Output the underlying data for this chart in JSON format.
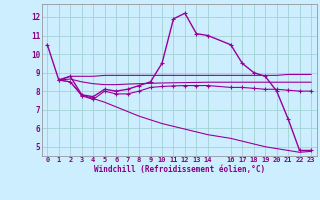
{
  "xlabel": "Windchill (Refroidissement éolien,°C)",
  "bg_color": "#cceeff",
  "grid_color": "#99cccc",
  "line_color": "#990099",
  "xlim": [
    -0.5,
    23.5
  ],
  "ylim": [
    4.5,
    12.7
  ],
  "xticks": [
    0,
    1,
    2,
    3,
    4,
    5,
    6,
    7,
    8,
    9,
    10,
    11,
    12,
    13,
    14,
    16,
    17,
    18,
    19,
    20,
    21,
    22,
    23
  ],
  "yticks": [
    5,
    6,
    7,
    8,
    9,
    10,
    11,
    12
  ],
  "series": [
    {
      "x": [
        0,
        1,
        2,
        3,
        4,
        5,
        6,
        7,
        8,
        9,
        10,
        11,
        12,
        13,
        14,
        16,
        17,
        18,
        19,
        20,
        21,
        22,
        23
      ],
      "y": [
        10.5,
        8.6,
        8.8,
        7.8,
        7.7,
        8.1,
        8.0,
        8.1,
        8.3,
        8.5,
        9.5,
        11.9,
        12.2,
        11.1,
        11.0,
        10.5,
        9.5,
        9.0,
        8.8,
        8.0,
        6.5,
        4.8,
        4.8
      ],
      "marker": true,
      "lw": 1.0
    },
    {
      "x": [
        1,
        2,
        3,
        4,
        5,
        6,
        7,
        8,
        9,
        10,
        11,
        12,
        13,
        14,
        16,
        17,
        18,
        19,
        20,
        21,
        22,
        23
      ],
      "y": [
        8.6,
        8.8,
        8.8,
        8.8,
        8.85,
        8.85,
        8.85,
        8.85,
        8.85,
        8.85,
        8.85,
        8.85,
        8.85,
        8.85,
        8.85,
        8.85,
        8.85,
        8.85,
        8.85,
        8.9,
        8.9,
        8.9
      ],
      "marker": false,
      "lw": 0.8
    },
    {
      "x": [
        1,
        2,
        3,
        4,
        5,
        6,
        7,
        8,
        9,
        10,
        11,
        12,
        13,
        14,
        16,
        17,
        18,
        19,
        20,
        21,
        22,
        23
      ],
      "y": [
        8.6,
        8.65,
        8.5,
        8.4,
        8.35,
        8.35,
        8.38,
        8.4,
        8.42,
        8.44,
        8.45,
        8.46,
        8.47,
        8.48,
        8.48,
        8.48,
        8.48,
        8.48,
        8.48,
        8.48,
        8.48,
        8.48
      ],
      "marker": false,
      "lw": 0.8
    },
    {
      "x": [
        1,
        2,
        3,
        4,
        5,
        6,
        7,
        8,
        9,
        10,
        11,
        12,
        13,
        14,
        16,
        17,
        18,
        19,
        20,
        21,
        22,
        23
      ],
      "y": [
        8.6,
        8.5,
        7.75,
        7.55,
        8.0,
        7.85,
        7.85,
        8.0,
        8.2,
        8.25,
        8.28,
        8.3,
        8.3,
        8.3,
        8.2,
        8.2,
        8.15,
        8.1,
        8.1,
        8.05,
        8.0,
        8.0
      ],
      "marker": true,
      "lw": 0.8
    },
    {
      "x": [
        1,
        2,
        3,
        4,
        5,
        6,
        7,
        8,
        9,
        10,
        11,
        12,
        13,
        14,
        16,
        17,
        18,
        19,
        20,
        21,
        22,
        23
      ],
      "y": [
        8.6,
        8.5,
        7.8,
        7.6,
        7.4,
        7.15,
        6.9,
        6.65,
        6.45,
        6.25,
        6.1,
        5.95,
        5.8,
        5.65,
        5.45,
        5.3,
        5.15,
        5.0,
        4.9,
        4.8,
        4.7,
        4.75
      ],
      "marker": false,
      "lw": 0.8
    }
  ]
}
